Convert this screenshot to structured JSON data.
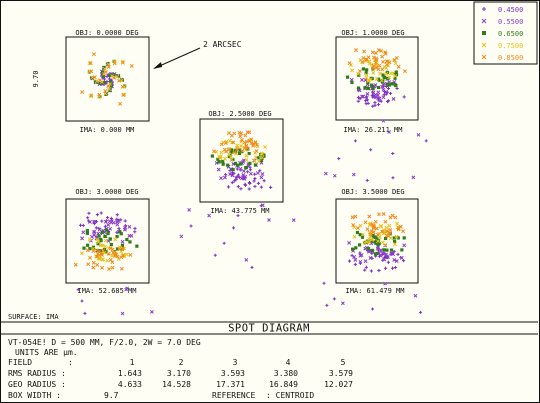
{
  "chart_data": {
    "type": "scatter",
    "title": "SPOT DIAGRAM",
    "annotation": "2 ARCSEC",
    "scale_label": "9.70",
    "surface_label": "SURFACE: IMA",
    "wavelengths": [
      {
        "name": "0.4500",
        "color": "#7b2fbe",
        "marker": "+"
      },
      {
        "name": "0.5500",
        "color": "#8a3cc8",
        "marker": "x"
      },
      {
        "name": "0.6500",
        "color": "#2e7d1a",
        "marker": "square"
      },
      {
        "name": "0.7500",
        "color": "#e8c21a",
        "marker": "x"
      },
      {
        "name": "0.8500",
        "color": "#f08a1c",
        "marker": "x"
      }
    ],
    "fields": [
      {
        "id": 1,
        "obj": "OBJ: 0.0000 DEG",
        "ima": "IMA: 0.000 MM",
        "rms_radius": 1.643,
        "geo_radius": 4.633
      },
      {
        "id": 2,
        "obj": "OBJ: 1.0000 DEG",
        "ima": "IMA: 26.211 MM",
        "rms_radius": 3.17,
        "geo_radius": 14.528
      },
      {
        "id": 3,
        "obj": "OBJ: 2.5000 DEG",
        "ima": "IMA: 43.775 MM",
        "rms_radius": 3.593,
        "geo_radius": 17.371
      },
      {
        "id": 4,
        "obj": "OBJ: 3.0000 DEG",
        "ima": "IMA: 52.685 MM",
        "rms_radius": 3.38,
        "geo_radius": 16.849
      },
      {
        "id": 5,
        "obj": "OBJ: 3.5000 DEG",
        "ima": "IMA: 61.479 MM",
        "rms_radius": 3.579,
        "geo_radius": 12.027
      }
    ],
    "box_width": "9.7",
    "units": "µm"
  },
  "info": {
    "line1": "VT-054E!  D = 500 MM, F/2.0, 2W = 7.0 DEG",
    "line2": "UNITS ARE µm.",
    "field_label": "FIELD",
    "field_sep": ":",
    "field_numbers": [
      "1",
      "2",
      "3",
      "4",
      "5"
    ],
    "rms_label": "RMS RADIUS :",
    "rms_values": [
      "1.643",
      "3.170",
      "3.593",
      "3.380",
      "3.579"
    ],
    "geo_label": "GEO RADIUS :",
    "geo_values": [
      "4.633",
      "14.528",
      "17.371",
      "16.849",
      "12.027"
    ],
    "box_label": "BOX WIDTH   :",
    "box_value": "9.7",
    "reference_label": "REFERENCE",
    "reference_value": ": CENTROID"
  }
}
